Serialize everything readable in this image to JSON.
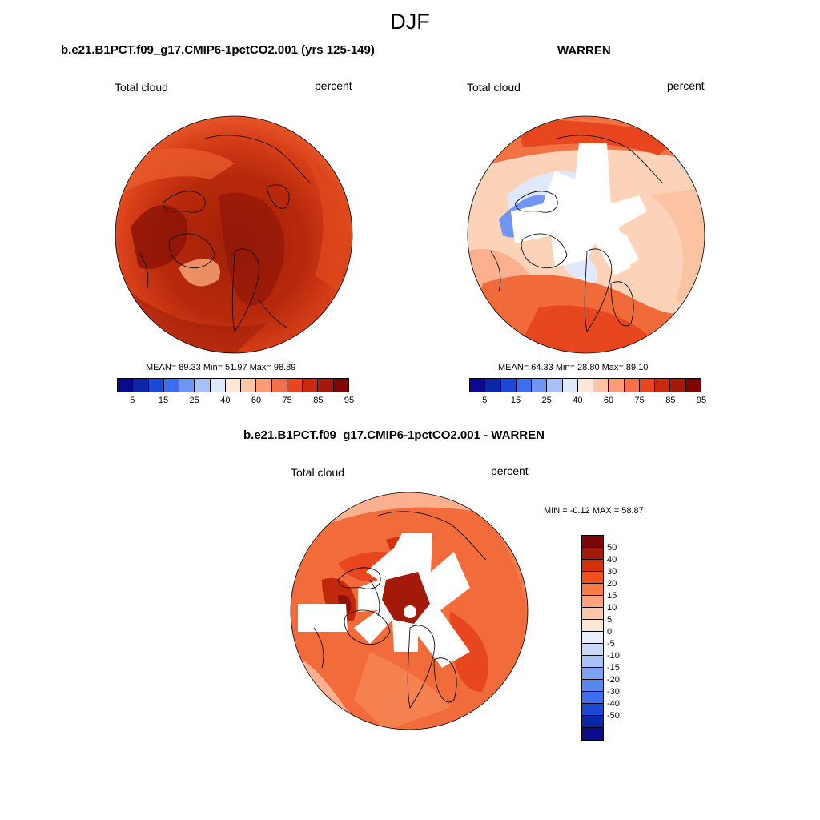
{
  "title": "DJF",
  "panels": [
    {
      "id": "p1",
      "title": "b.e21.B1PCT.f09_g17.CMIP6-1pctCO2.001 (yrs 125-149)",
      "left_label": "Total cloud",
      "right_label": "percent",
      "stats": "MEAN=  89.33  Min=  51.97  Max=  98.89"
    },
    {
      "id": "p2",
      "title": "WARREN",
      "left_label": "Total cloud",
      "right_label": "percent",
      "stats": "MEAN=  64.33  Min=  28.80  Max=  89.10"
    },
    {
      "id": "p3",
      "title": "b.e21.B1PCT.f09_g17.CMIP6-1pctCO2.001 - WARREN",
      "left_label": "Total cloud",
      "right_label": "percent",
      "stats": "MIN =  -0.12 MAX =  58.87"
    }
  ],
  "colorbar_abs": {
    "colors": [
      "#0a0a8c",
      "#0b27a8",
      "#1a49d6",
      "#3b6ff0",
      "#6e96f2",
      "#a6c2f7",
      "#dfe9fb",
      "#fde7d6",
      "#fcc5a6",
      "#fb9c76",
      "#f5714a",
      "#e8461f",
      "#c92a0c",
      "#a3190a",
      "#7e0606"
    ],
    "tick_labels": [
      "5",
      "15",
      "25",
      "40",
      "60",
      "75",
      "85",
      "95"
    ]
  },
  "colorbar_diff": {
    "colors": [
      "#7e0606",
      "#a3190a",
      "#d6300b",
      "#f0501a",
      "#f77b46",
      "#fba27d",
      "#fdc8a8",
      "#fde7d6",
      "#e6effb",
      "#c8daf8",
      "#a6c2f7",
      "#7ea3f2",
      "#5a86f0",
      "#3b6ff0",
      "#1a49d6",
      "#0b27a8",
      "#0a0a8c"
    ],
    "tick_labels": [
      "50",
      "40",
      "30",
      "20",
      "15",
      "10",
      "5",
      "0",
      "-5",
      "-10",
      "-15",
      "-20",
      "-30",
      "-40",
      "-50"
    ]
  },
  "map_fill": {
    "p1": {
      "base": "#d23a12",
      "rim": "#e8521f",
      "core": "#9c1a08"
    },
    "p2": {
      "base": "#fcd2b8",
      "rim": "#f06a3a",
      "core": "#ffffff"
    },
    "p3": {
      "base": "#f06a3a",
      "rim": "#fbb090",
      "core": "#ffffff"
    }
  }
}
